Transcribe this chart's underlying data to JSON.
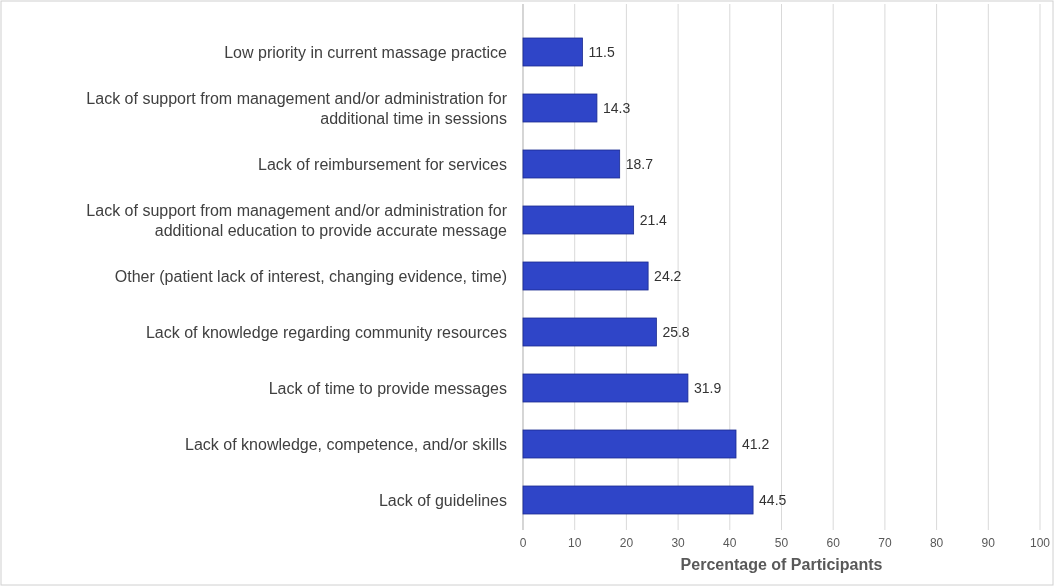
{
  "chart_data": {
    "type": "bar",
    "orientation": "horizontal",
    "xlabel": "Percentage of Participants",
    "categories": [
      "Low priority in current massage practice",
      "Lack of support from management and/or administration for additional time in sessions",
      "Lack of reimbursement for services",
      "Lack of support from management and/or administration for additional education to provide accurate message",
      "Other (patient lack of interest, changing evidence, time)",
      "Lack of knowledge regarding community resources",
      "Lack of time to provide messages",
      "Lack of knowledge, competence, and/or skills",
      "Lack of guidelines"
    ],
    "values": [
      11.5,
      14.3,
      18.7,
      21.4,
      24.2,
      25.8,
      31.9,
      41.2,
      44.5
    ],
    "color": "#2f45c8",
    "xlim": [
      0,
      100
    ],
    "xticks": [
      0,
      10,
      20,
      30,
      40,
      50,
      60,
      70,
      80,
      90,
      100
    ],
    "grid": "x",
    "data_labels": true
  }
}
